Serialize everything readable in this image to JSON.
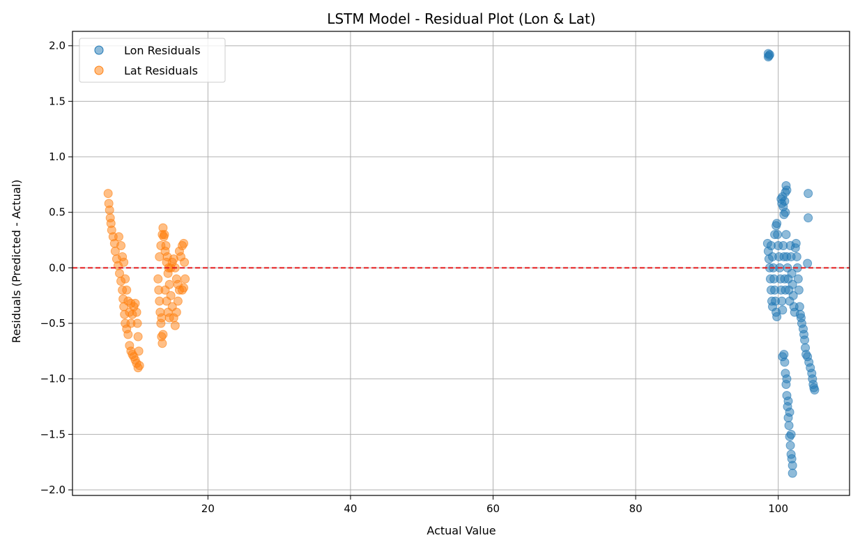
{
  "chart_data": {
    "type": "scatter",
    "title": "LSTM Model - Residual Plot (Lon & Lat)",
    "xlabel": "Actual Value",
    "ylabel": "Residuals (Predicted - Actual)",
    "xlim": [
      1,
      110
    ],
    "ylim": [
      -2.05,
      2.13
    ],
    "xticks": [
      20,
      40,
      60,
      80,
      100
    ],
    "yticks": [
      -2.0,
      -1.5,
      -1.0,
      -0.5,
      0.0,
      0.5,
      1.0,
      1.5,
      2.0
    ],
    "grid": true,
    "legend_position": "top-left",
    "reference_line": {
      "y": 0,
      "color": "#e4191b",
      "style": "dashed"
    },
    "series": [
      {
        "name": "Lon Residuals",
        "color": "#1f77b4",
        "points": [
          [
            98.6,
            1.93
          ],
          [
            98.7,
            1.91
          ],
          [
            98.8,
            1.92
          ],
          [
            98.6,
            1.9
          ],
          [
            98.5,
            0.22
          ],
          [
            98.6,
            0.15
          ],
          [
            98.7,
            0.08
          ],
          [
            98.8,
            0.0
          ],
          [
            98.9,
            -0.1
          ],
          [
            99.0,
            -0.2
          ],
          [
            99.1,
            -0.3
          ],
          [
            99.2,
            -0.35
          ],
          [
            99.0,
            0.2
          ],
          [
            99.2,
            0.1
          ],
          [
            99.3,
            0.0
          ],
          [
            99.4,
            -0.1
          ],
          [
            99.5,
            -0.2
          ],
          [
            99.6,
            -0.3
          ],
          [
            99.7,
            -0.4
          ],
          [
            99.8,
            -0.44
          ],
          [
            99.5,
            0.3
          ],
          [
            99.7,
            0.38
          ],
          [
            99.8,
            0.4
          ],
          [
            99.9,
            0.3
          ],
          [
            100.0,
            0.2
          ],
          [
            100.1,
            0.1
          ],
          [
            100.2,
            0.0
          ],
          [
            100.3,
            -0.1
          ],
          [
            100.4,
            -0.2
          ],
          [
            100.5,
            -0.3
          ],
          [
            100.6,
            -0.38
          ],
          [
            100.7,
            0.2
          ],
          [
            100.8,
            0.1
          ],
          [
            100.9,
            -0.1
          ],
          [
            101.0,
            -0.2
          ],
          [
            100.4,
            0.62
          ],
          [
            100.5,
            0.58
          ],
          [
            100.6,
            0.64
          ],
          [
            100.7,
            0.55
          ],
          [
            100.8,
            0.48
          ],
          [
            100.9,
            0.6
          ],
          [
            101.0,
            0.68
          ],
          [
            101.1,
            0.74
          ],
          [
            101.2,
            0.7
          ],
          [
            101.0,
            0.5
          ],
          [
            101.1,
            0.3
          ],
          [
            101.2,
            0.1
          ],
          [
            101.3,
            0.0
          ],
          [
            101.4,
            -0.1
          ],
          [
            101.5,
            -0.2
          ],
          [
            101.6,
            -0.3
          ],
          [
            101.7,
            0.2
          ],
          [
            101.8,
            0.1
          ],
          [
            101.9,
            -0.05
          ],
          [
            102.0,
            -0.15
          ],
          [
            102.1,
            -0.25
          ],
          [
            102.2,
            -0.35
          ],
          [
            102.3,
            -0.4
          ],
          [
            102.4,
            0.18
          ],
          [
            102.5,
            0.22
          ],
          [
            102.6,
            0.1
          ],
          [
            102.7,
            0.0
          ],
          [
            102.8,
            -0.1
          ],
          [
            102.9,
            -0.2
          ],
          [
            103.0,
            -0.35
          ],
          [
            103.1,
            -0.42
          ],
          [
            103.2,
            -0.45
          ],
          [
            103.3,
            -0.5
          ],
          [
            103.5,
            -0.55
          ],
          [
            103.6,
            -0.6
          ],
          [
            103.7,
            -0.65
          ],
          [
            103.8,
            -0.72
          ],
          [
            103.9,
            -0.78
          ],
          [
            104.1,
            -0.8
          ],
          [
            104.3,
            -0.85
          ],
          [
            104.5,
            -0.9
          ],
          [
            104.7,
            -0.95
          ],
          [
            104.8,
            -1.0
          ],
          [
            104.9,
            -1.05
          ],
          [
            105.0,
            -1.08
          ],
          [
            105.1,
            -1.1
          ],
          [
            100.6,
            -0.8
          ],
          [
            100.8,
            -0.78
          ],
          [
            100.9,
            -0.85
          ],
          [
            101.0,
            -0.95
          ],
          [
            101.1,
            -1.05
          ],
          [
            101.2,
            -1.15
          ],
          [
            101.3,
            -1.25
          ],
          [
            101.4,
            -1.35
          ],
          [
            101.5,
            -1.42
          ],
          [
            101.6,
            -1.52
          ],
          [
            101.7,
            -1.6
          ],
          [
            101.8,
            -1.68
          ],
          [
            101.9,
            -1.72
          ],
          [
            102.0,
            -1.78
          ],
          [
            102.0,
            -1.85
          ],
          [
            101.8,
            -1.5
          ],
          [
            101.6,
            -1.3
          ],
          [
            101.4,
            -1.2
          ],
          [
            101.2,
            -1.0
          ],
          [
            104.2,
            0.67
          ],
          [
            104.2,
            0.45
          ],
          [
            104.1,
            0.04
          ]
        ]
      },
      {
        "name": "Lat Residuals",
        "color": "#ff7f0e",
        "points": [
          [
            6.0,
            0.67
          ],
          [
            6.1,
            0.58
          ],
          [
            6.2,
            0.52
          ],
          [
            6.3,
            0.45
          ],
          [
            6.4,
            0.4
          ],
          [
            6.5,
            0.34
          ],
          [
            6.7,
            0.28
          ],
          [
            6.9,
            0.22
          ],
          [
            7.0,
            0.15
          ],
          [
            7.2,
            0.08
          ],
          [
            7.4,
            0.02
          ],
          [
            7.6,
            -0.05
          ],
          [
            7.8,
            -0.12
          ],
          [
            8.0,
            -0.2
          ],
          [
            8.1,
            -0.28
          ],
          [
            8.2,
            -0.35
          ],
          [
            8.3,
            -0.42
          ],
          [
            8.4,
            -0.5
          ],
          [
            8.6,
            -0.55
          ],
          [
            8.8,
            -0.6
          ],
          [
            7.5,
            0.28
          ],
          [
            7.8,
            0.2
          ],
          [
            8.0,
            0.1
          ],
          [
            8.2,
            0.05
          ],
          [
            8.4,
            -0.1
          ],
          [
            8.6,
            -0.2
          ],
          [
            8.8,
            -0.3
          ],
          [
            9.0,
            -0.4
          ],
          [
            9.2,
            -0.5
          ],
          [
            9.0,
            -0.7
          ],
          [
            9.2,
            -0.75
          ],
          [
            9.4,
            -0.78
          ],
          [
            9.6,
            -0.8
          ],
          [
            9.8,
            -0.83
          ],
          [
            10.0,
            -0.86
          ],
          [
            10.2,
            -0.9
          ],
          [
            10.4,
            -0.88
          ],
          [
            10.3,
            -0.75
          ],
          [
            10.2,
            -0.62
          ],
          [
            10.1,
            -0.5
          ],
          [
            10.0,
            -0.4
          ],
          [
            9.8,
            -0.32
          ],
          [
            9.6,
            -0.35
          ],
          [
            9.4,
            -0.42
          ],
          [
            9.2,
            -0.32
          ],
          [
            13.0,
            -0.1
          ],
          [
            13.1,
            -0.2
          ],
          [
            13.2,
            -0.3
          ],
          [
            13.3,
            -0.4
          ],
          [
            13.4,
            -0.5
          ],
          [
            13.5,
            -0.62
          ],
          [
            13.6,
            -0.68
          ],
          [
            13.7,
            -0.6
          ],
          [
            13.2,
            0.1
          ],
          [
            13.4,
            0.2
          ],
          [
            13.6,
            0.3
          ],
          [
            13.7,
            0.36
          ],
          [
            13.8,
            0.28
          ],
          [
            14.0,
            0.15
          ],
          [
            14.2,
            0.05
          ],
          [
            14.4,
            -0.05
          ],
          [
            14.6,
            -0.15
          ],
          [
            14.8,
            -0.25
          ],
          [
            15.0,
            -0.35
          ],
          [
            15.2,
            -0.45
          ],
          [
            15.4,
            -0.52
          ],
          [
            15.6,
            -0.4
          ],
          [
            15.8,
            -0.3
          ],
          [
            14.0,
            -0.2
          ],
          [
            14.2,
            -0.3
          ],
          [
            14.4,
            -0.4
          ],
          [
            14.6,
            -0.45
          ],
          [
            14.8,
            0.0
          ],
          [
            15.0,
            0.05
          ],
          [
            15.2,
            0.08
          ],
          [
            15.4,
            0.0
          ],
          [
            15.6,
            -0.1
          ],
          [
            15.8,
            -0.15
          ],
          [
            16.0,
            -0.2
          ],
          [
            16.0,
            0.15
          ],
          [
            16.2,
            0.1
          ],
          [
            16.4,
            0.2
          ],
          [
            16.6,
            0.22
          ],
          [
            16.7,
            0.05
          ],
          [
            16.8,
            -0.1
          ],
          [
            16.6,
            -0.18
          ],
          [
            16.4,
            -0.2
          ],
          [
            13.9,
            0.3
          ],
          [
            14.1,
            0.2
          ],
          [
            14.3,
            0.1
          ],
          [
            14.5,
            0.0
          ],
          [
            13.5,
            -0.45
          ]
        ]
      }
    ]
  }
}
